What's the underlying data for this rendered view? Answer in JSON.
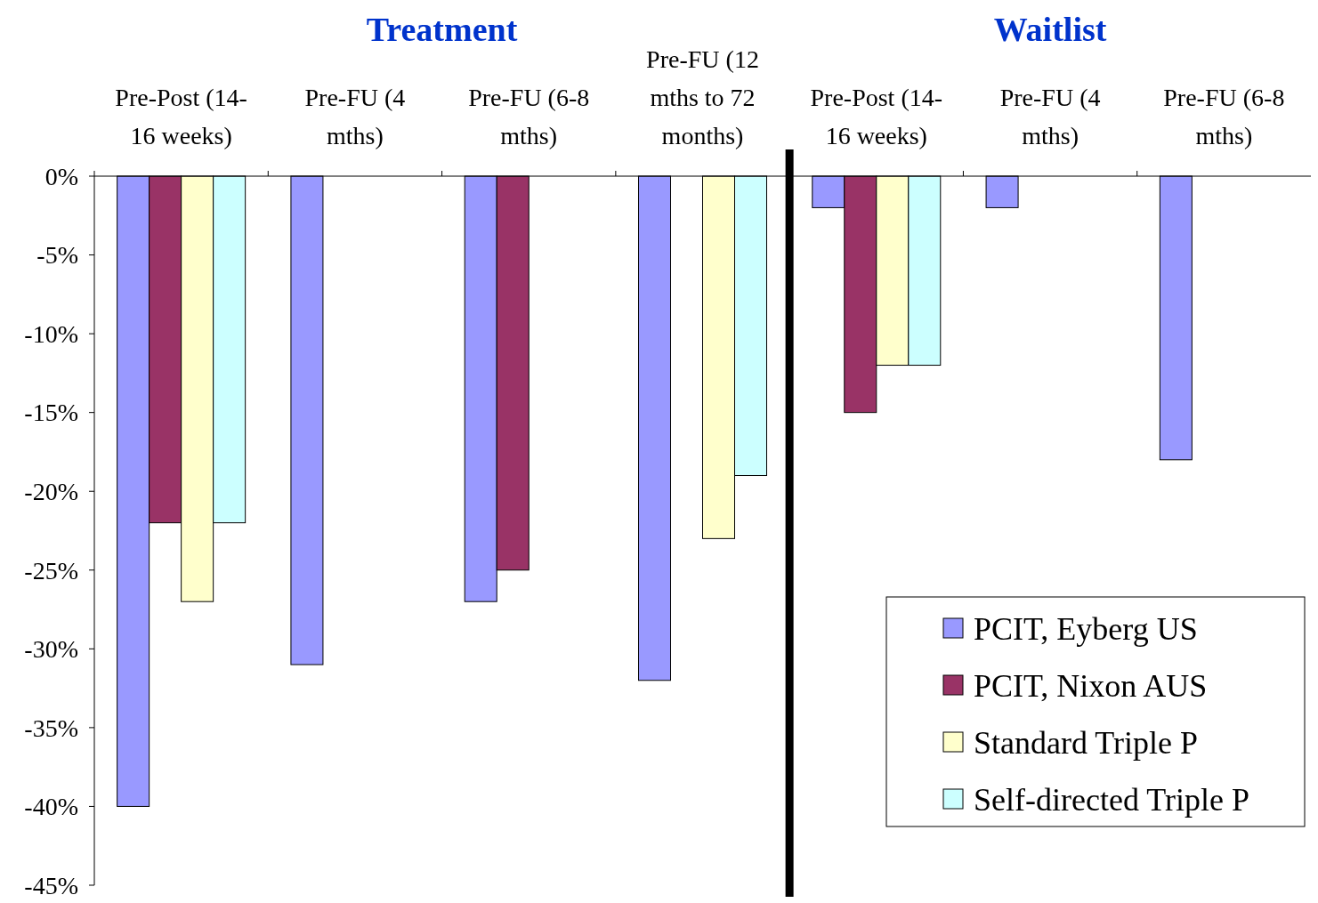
{
  "chart_data": {
    "type": "bar",
    "categories": [
      "Pre-Post (14-16 weeks)",
      "Pre-FU (4 mths)",
      "Pre-FU (6-8 mths)",
      "Pre-FU (12 mths to 72 months)",
      "Pre-Post (14-16 weeks)",
      "Pre-FU (4 mths)",
      "Pre-FU (6-8 mths)"
    ],
    "series": [
      {
        "name": "PCIT, Eyberg US",
        "color": "#9999ff",
        "values": [
          -40,
          -31,
          -27,
          -32,
          -2,
          -2,
          -18
        ]
      },
      {
        "name": "PCIT, Nixon AUS",
        "color": "#993366",
        "values": [
          -22,
          null,
          -25,
          null,
          -15,
          null,
          null
        ]
      },
      {
        "name": "Standard Triple P",
        "color": "#ffffcc",
        "values": [
          -27,
          null,
          null,
          -23,
          -12,
          null,
          null
        ]
      },
      {
        "name": "Self-directed Triple P",
        "color": "#ccffff",
        "values": [
          -22,
          null,
          null,
          -19,
          -12,
          null,
          null
        ]
      }
    ],
    "ylim": [
      -45,
      0
    ],
    "yticks": [
      {
        "value": 0,
        "label": "0%"
      },
      {
        "value": -5,
        "label": "-5%"
      },
      {
        "value": -10,
        "label": "-10%"
      },
      {
        "value": -15,
        "label": "-15%"
      },
      {
        "value": -20,
        "label": "-20%"
      },
      {
        "value": -25,
        "label": "-25%"
      },
      {
        "value": -30,
        "label": "-30%"
      },
      {
        "value": -35,
        "label": "-35%"
      },
      {
        "value": -40,
        "label": "-40%"
      },
      {
        "value": -45,
        "label": "-45%"
      }
    ],
    "annotations": [
      "Treatment",
      "Waitlist"
    ],
    "legend": "bottom right",
    "grid": false
  }
}
